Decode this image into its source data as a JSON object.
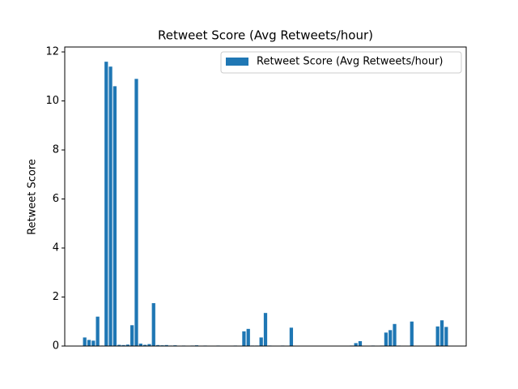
{
  "chart_data": {
    "type": "bar",
    "title": "Retweet Score (Avg Retweets/hour)",
    "ylabel": "Retweet Score",
    "categories": [
      null,
      null,
      null,
      null,
      null,
      null,
      null,
      null,
      null,
      null,
      null,
      null,
      null,
      null,
      null,
      null,
      null,
      null,
      null,
      null,
      null,
      null,
      null,
      null,
      null,
      null,
      null,
      null,
      null,
      null,
      null,
      null,
      null,
      null,
      null,
      null,
      null,
      null,
      null,
      null,
      null,
      null,
      null,
      null,
      null,
      null,
      null,
      null,
      null,
      null,
      null,
      null,
      null,
      null,
      null,
      null,
      null,
      null,
      null,
      null,
      null,
      null,
      null,
      null,
      null,
      null,
      null,
      null,
      null,
      null,
      null,
      null,
      null,
      null,
      null,
      null,
      null,
      null,
      null,
      null,
      null,
      null,
      null,
      null,
      null
    ],
    "series": [
      {
        "name": "Retweet Score (Avg Retweets/hour)",
        "color": "#1f77b4",
        "values": [
          0.35,
          0.25,
          0.22,
          1.2,
          0.02,
          11.6,
          11.4,
          10.6,
          0.05,
          0.04,
          0.06,
          0.85,
          10.9,
          0.1,
          0.05,
          0.08,
          1.75,
          0.04,
          0.03,
          0.04,
          0.02,
          0.03,
          0,
          0.02,
          0,
          0.02,
          0.03,
          0,
          0.02,
          0.01,
          0,
          0.02,
          0.01,
          0,
          0.01,
          0.02,
          0,
          0.6,
          0.7,
          0.02,
          0.02,
          0.35,
          1.35,
          0.02,
          0,
          0.01,
          0.02,
          0,
          0.75,
          0.01,
          0,
          0.01,
          0,
          0,
          0.01,
          0,
          0,
          0.01,
          0,
          0,
          0.01,
          0,
          0.02,
          0.12,
          0.2,
          0.01,
          0,
          0.02,
          0.01,
          0.02,
          0.55,
          0.65,
          0.9,
          0.02,
          0,
          0.01,
          1.0,
          0,
          0.01,
          0,
          0.01,
          0,
          0.8,
          1.05,
          0.78
        ]
      }
    ],
    "ylim": [
      0,
      12.2
    ],
    "yticks": [
      0,
      2,
      4,
      6,
      8,
      10,
      12
    ],
    "legend": "upper right"
  }
}
